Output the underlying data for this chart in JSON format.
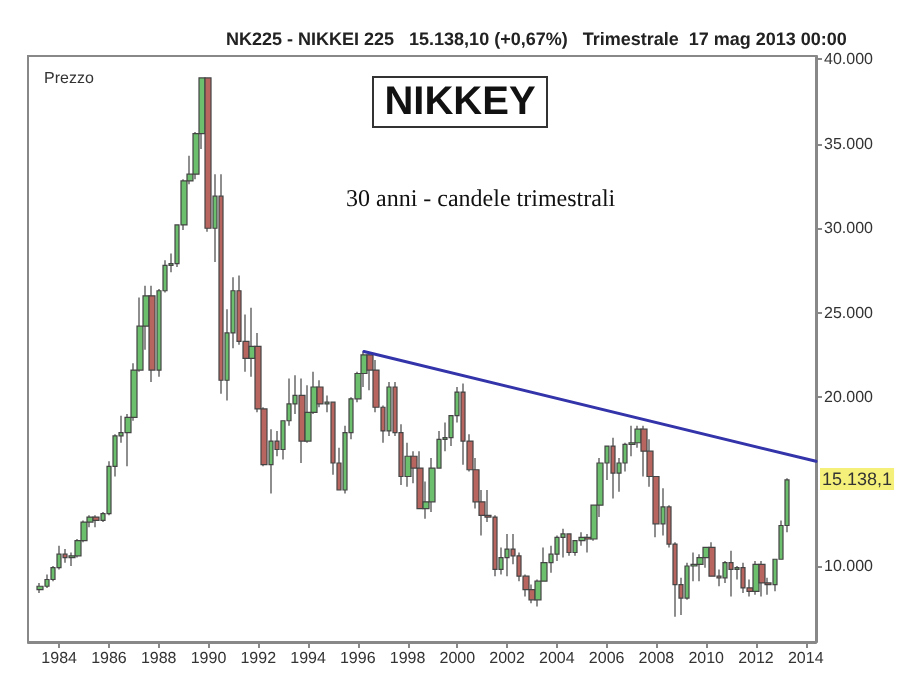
{
  "chart_data": {
    "type": "candlestick",
    "title": "NIKKEY",
    "subtitle": "NK225 - NIKKEI 225   15.138,10 (+0,67%)   Trimestrale  17 mag 2013 00:00",
    "ylabel": "Prezzo",
    "annotations": [
      "30 anni - candele trimestrali",
      "15.138,1"
    ],
    "colors": [
      "#6cbf6c",
      "#6cbf6c",
      "#6cbf6c",
      "#6cbf6c",
      "#b86560",
      "#6cbf6c",
      "#6cbf6c",
      "#6cbf6c",
      "#6cbf6c",
      "#b86560",
      "#6cbf6c",
      "#6cbf6c",
      "#6cbf6c",
      "#6cbf6c",
      "#6cbf6c",
      "#6cbf6c",
      "#6cbf6c",
      "#6cbf6c",
      "#b86560",
      "#6cbf6c",
      "#6cbf6c",
      "#6cbf6c",
      "#6cbf6c",
      "#6cbf6c",
      "#6cbf6c",
      "#6cbf6c",
      "#6cbf6c",
      "#b86560",
      "#6cbf6c",
      "#b86560",
      "#6cbf6c",
      "#6cbf6c",
      "#b86560",
      "#b86560",
      "#6cbf6c",
      "#b86560",
      "#b86560",
      "#6cbf6c",
      "#b86560",
      "#6cbf6c",
      "#6cbf6c",
      "#6cbf6c",
      "#b86560",
      "#6cbf6c",
      "#6cbf6c",
      "#b86560",
      "#6cbf6c",
      "#b86560",
      "#b86560",
      "#6cbf6c",
      "#6cbf6c",
      "#6cbf6c",
      "#6cbf6c",
      "#b86560",
      "#b86560",
      "#b86560",
      "#6cbf6c",
      "#b86560",
      "#b86560",
      "#6cbf6c",
      "#b86560",
      "#b86560",
      "#6cbf6c",
      "#6cbf6c",
      "#6cbf6c",
      "#6cbf6c",
      "#6cbf6c",
      "#6cbf6c",
      "#b86560",
      "#b86560",
      "#b86560",
      "#b86560",
      "#b86560",
      "#b86560",
      "#6cbf6c",
      "#6cbf6c",
      "#b86560",
      "#b86560",
      "#b86560",
      "#b86560",
      "#6cbf6c",
      "#6cbf6c",
      "#6cbf6c",
      "#6cbf6c",
      "#6cbf6c",
      "#b86560",
      "#6cbf6c",
      "#6cbf6c",
      "#b86560",
      "#6cbf6c",
      "#6cbf6c",
      "#6cbf6c",
      "#b86560",
      "#6cbf6c",
      "#6cbf6c",
      "#6cbf6c",
      "#6cbf6c",
      "#b86560",
      "#b86560",
      "#b86560",
      "#6cbf6c",
      "#b86560",
      "#b86560",
      "#b86560",
      "#6cbf6c",
      "#6cbf6c",
      "#6cbf6c",
      "#6cbf6c",
      "#b86560",
      "#b86560",
      "#6cbf6c",
      "#b86560",
      "#6cbf6c",
      "#b86560",
      "#b86560",
      "#6cbf6c",
      "#b86560",
      "#b86560",
      "#6cbf6c",
      "#6cbf6c",
      "#6cbf6c"
    ],
    "x": [
      "1983-04",
      "1983-07",
      "1983-10",
      "1984-01",
      "1984-04",
      "1984-07",
      "1984-10",
      "1985-01",
      "1985-04",
      "1985-07",
      "1985-10",
      "1986-01",
      "1986-04",
      "1986-07",
      "1986-10",
      "1987-01",
      "1987-04",
      "1987-07",
      "1987-10",
      "1988-01",
      "1988-04",
      "1988-07",
      "1988-10",
      "1989-01",
      "1989-04",
      "1989-07",
      "1989-10",
      "1990-01",
      "1990-04",
      "1990-07",
      "1990-10",
      "1991-01",
      "1991-04",
      "1991-07",
      "1991-10",
      "1992-01",
      "1992-04",
      "1992-07",
      "1992-10",
      "1993-01",
      "1993-04",
      "1993-07",
      "1993-10",
      "1994-01",
      "1994-04",
      "1994-07",
      "1994-10",
      "1995-01",
      "1995-04",
      "1995-07",
      "1995-10",
      "1996-01",
      "1996-04",
      "1996-07",
      "1996-10",
      "1997-01",
      "1997-04",
      "1997-07",
      "1997-10",
      "1998-01",
      "1998-04",
      "1998-07",
      "1998-10",
      "1999-01",
      "1999-04",
      "1999-07",
      "1999-10",
      "2000-01",
      "2000-04",
      "2000-07",
      "2000-10",
      "2001-01",
      "2001-04",
      "2001-07",
      "2001-10",
      "2002-01",
      "2002-04",
      "2002-07",
      "2002-10",
      "2003-01",
      "2003-04",
      "2003-07",
      "2003-10",
      "2004-01",
      "2004-04",
      "2004-07",
      "2004-10",
      "2005-01",
      "2005-04",
      "2005-07",
      "2005-10",
      "2006-01",
      "2006-04",
      "2006-07",
      "2006-10",
      "2007-01",
      "2007-04",
      "2007-07",
      "2007-10",
      "2008-01",
      "2008-04",
      "2008-07",
      "2008-10",
      "2009-01",
      "2009-04",
      "2009-07",
      "2009-10",
      "2010-01",
      "2010-04",
      "2010-07",
      "2010-10",
      "2011-01",
      "2011-04",
      "2011-07",
      "2011-10",
      "2012-01",
      "2012-04",
      "2012-07",
      "2012-10",
      "2013-01",
      "2013-04"
    ],
    "ohlc": [
      [
        8600,
        9000,
        8400,
        8800
      ],
      [
        8800,
        9500,
        8700,
        9200
      ],
      [
        9200,
        10000,
        9100,
        9900
      ],
      [
        9900,
        11200,
        9800,
        10700
      ],
      [
        10700,
        11000,
        10200,
        10500
      ],
      [
        10500,
        10800,
        10000,
        10600
      ],
      [
        10600,
        11600,
        10500,
        11500
      ],
      [
        11500,
        12700,
        11400,
        12600
      ],
      [
        12600,
        13000,
        12300,
        12900
      ],
      [
        12900,
        13000,
        12300,
        12700
      ],
      [
        12700,
        13200,
        12600,
        13100
      ],
      [
        13100,
        16200,
        13000,
        15900
      ],
      [
        15900,
        17800,
        15300,
        17700
      ],
      [
        17700,
        18900,
        17300,
        17900
      ],
      [
        17900,
        19000,
        15900,
        18800
      ],
      [
        18800,
        22000,
        18600,
        21600
      ],
      [
        21600,
        25900,
        21500,
        24200
      ],
      [
        24200,
        26600,
        22800,
        26000
      ],
      [
        26000,
        26600,
        20900,
        21600
      ],
      [
        21600,
        26400,
        21200,
        26300
      ],
      [
        26300,
        28100,
        26200,
        27800
      ],
      [
        27800,
        28500,
        27400,
        27900
      ],
      [
        27900,
        30200,
        27700,
        30200
      ],
      [
        30200,
        32900,
        29900,
        32800
      ],
      [
        32800,
        34300,
        32600,
        33200
      ],
      [
        33200,
        35700,
        32900,
        35600
      ],
      [
        35600,
        38900,
        34700,
        38900
      ],
      [
        38900,
        38900,
        29800,
        30000
      ],
      [
        30000,
        33200,
        28000,
        31900
      ],
      [
        31900,
        33200,
        20200,
        21000
      ],
      [
        21000,
        25200,
        19800,
        23800
      ],
      [
        23800,
        27100,
        22900,
        26300
      ],
      [
        26300,
        27200,
        23100,
        23300
      ],
      [
        23300,
        24900,
        21500,
        22300
      ],
      [
        22300,
        25300,
        21200,
        23000
      ],
      [
        23000,
        23800,
        19100,
        19300
      ],
      [
        19300,
        19400,
        15900,
        16000
      ],
      [
        16000,
        18100,
        14300,
        17400
      ],
      [
        17400,
        18000,
        16500,
        16900
      ],
      [
        16900,
        18600,
        16300,
        18600
      ],
      [
        18600,
        21100,
        18300,
        19600
      ],
      [
        19600,
        21300,
        19000,
        20100
      ],
      [
        20100,
        21100,
        16100,
        17400
      ],
      [
        17400,
        20700,
        17300,
        19100
      ],
      [
        19100,
        21500,
        19000,
        20600
      ],
      [
        20600,
        21000,
        19400,
        19600
      ],
      [
        19600,
        20100,
        19100,
        19700
      ],
      [
        19700,
        19700,
        15400,
        16100
      ],
      [
        16100,
        17000,
        14500,
        14500
      ],
      [
        14500,
        18300,
        14300,
        17900
      ],
      [
        17900,
        20000,
        17500,
        19900
      ],
      [
        19900,
        21500,
        19700,
        21400
      ],
      [
        21400,
        22700,
        20600,
        22500
      ],
      [
        22500,
        22600,
        20400,
        21600
      ],
      [
        21600,
        22200,
        19100,
        19400
      ],
      [
        19400,
        19500,
        17300,
        18000
      ],
      [
        18000,
        20900,
        17700,
        20600
      ],
      [
        20600,
        20900,
        17700,
        17900
      ],
      [
        17900,
        18400,
        14800,
        15300
      ],
      [
        15300,
        17300,
        14700,
        16500
      ],
      [
        16500,
        16800,
        14900,
        15800
      ],
      [
        15800,
        16800,
        13400,
        13400
      ],
      [
        13400,
        15000,
        12800,
        13800
      ],
      [
        13800,
        16400,
        13200,
        15800
      ],
      [
        15800,
        18000,
        15800,
        17500
      ],
      [
        17500,
        18500,
        16800,
        17600
      ],
      [
        17600,
        18900,
        17100,
        18900
      ],
      [
        18900,
        20600,
        18500,
        20300
      ],
      [
        20300,
        20800,
        16000,
        17400
      ],
      [
        17400,
        17800,
        15600,
        15700
      ],
      [
        15700,
        16400,
        13400,
        13800
      ],
      [
        13800,
        14500,
        11800,
        13000
      ],
      [
        13000,
        14500,
        12600,
        12900
      ],
      [
        12900,
        13000,
        9400,
        9800
      ],
      [
        9800,
        11100,
        9500,
        10500
      ],
      [
        10500,
        11900,
        9400,
        11000
      ],
      [
        11000,
        11900,
        10100,
        10600
      ],
      [
        10600,
        10800,
        9100,
        9400
      ],
      [
        9400,
        9500,
        8200,
        8600
      ],
      [
        8600,
        8900,
        7800,
        8000
      ],
      [
        8000,
        9200,
        7600,
        9100
      ],
      [
        9100,
        11100,
        9100,
        10200
      ],
      [
        10200,
        11200,
        9600,
        10700
      ],
      [
        10700,
        11800,
        10300,
        11700
      ],
      [
        11700,
        12200,
        10500,
        11900
      ],
      [
        11900,
        11900,
        10600,
        10800
      ],
      [
        10800,
        11500,
        10600,
        11500
      ],
      [
        11500,
        12000,
        11200,
        11700
      ],
      [
        11700,
        11900,
        10800,
        11600
      ],
      [
        11600,
        13600,
        11500,
        13600
      ],
      [
        13600,
        16400,
        12900,
        16100
      ],
      [
        16100,
        17100,
        15100,
        17100
      ],
      [
        17100,
        17600,
        14000,
        15500
      ],
      [
        15500,
        16400,
        14400,
        16100
      ],
      [
        16100,
        17300,
        15600,
        17200
      ],
      [
        17200,
        18300,
        16500,
        17300
      ],
      [
        17300,
        18300,
        17000,
        18100
      ],
      [
        18100,
        18300,
        15300,
        16800
      ],
      [
        16800,
        17500,
        14700,
        15300
      ],
      [
        15300,
        15300,
        11700,
        12500
      ],
      [
        12500,
        14600,
        11800,
        13500
      ],
      [
        13500,
        13600,
        11100,
        11300
      ],
      [
        11300,
        11400,
        7000,
        8900
      ],
      [
        8900,
        9300,
        7100,
        8100
      ],
      [
        8100,
        10200,
        8000,
        10000
      ],
      [
        10000,
        10800,
        9100,
        10100
      ],
      [
        10100,
        10700,
        9100,
        10500
      ],
      [
        10500,
        11100,
        9900,
        11100
      ],
      [
        11100,
        11400,
        9400,
        9400
      ],
      [
        9400,
        9800,
        8800,
        9300
      ],
      [
        9300,
        10300,
        9000,
        10200
      ],
      [
        10200,
        10900,
        8200,
        9800
      ],
      [
        9800,
        10000,
        9200,
        9900
      ],
      [
        9900,
        10200,
        8400,
        8700
      ],
      [
        8700,
        9200,
        8200,
        8500
      ],
      [
        8500,
        10300,
        8300,
        10100
      ],
      [
        10100,
        10300,
        8200,
        9000
      ],
      [
        9000,
        9300,
        8300,
        8900
      ],
      [
        8900,
        10400,
        8500,
        10400
      ],
      [
        10400,
        12700,
        10400,
        12400
      ],
      [
        12400,
        15200,
        12000,
        15100
      ]
    ],
    "series": [
      {
        "type": "line",
        "color": "#3333aa",
        "x": [
          "1996-04",
          "2014-06"
        ],
        "values": [
          22700,
          16200
        ]
      }
    ],
    "xlim": [
      "1982-10",
      "2014-06"
    ],
    "xticks": [
      {
        "value": "1984",
        "label": "1984"
      },
      {
        "value": "1986",
        "label": "1986"
      },
      {
        "value": "1988",
        "label": "1988"
      },
      {
        "value": "1990",
        "label": "1990"
      },
      {
        "value": "1992",
        "label": "1992"
      },
      {
        "value": "1994",
        "label": "1994"
      },
      {
        "value": "1996",
        "label": "1996"
      },
      {
        "value": "1998",
        "label": "1998"
      },
      {
        "value": "2000",
        "label": "2000"
      },
      {
        "value": "2002",
        "label": "2002"
      },
      {
        "value": "2004",
        "label": "2004"
      },
      {
        "value": "2006",
        "label": "2006"
      },
      {
        "value": "2008",
        "label": "2008"
      },
      {
        "value": "2010",
        "label": "2010"
      },
      {
        "value": "2012",
        "label": "2012"
      },
      {
        "value": "2014",
        "label": "2014"
      }
    ],
    "ylim": [
      5500,
      40200
    ],
    "yticks": [
      {
        "value": 10000,
        "label": "10.000"
      },
      {
        "value": 20000,
        "label": "20.000"
      },
      {
        "value": 25000,
        "label": "25.000"
      },
      {
        "value": 30000,
        "label": "30.000"
      },
      {
        "value": 35000,
        "label": "35.000"
      },
      {
        "value": 40000,
        "label": "40.000"
      }
    ]
  }
}
